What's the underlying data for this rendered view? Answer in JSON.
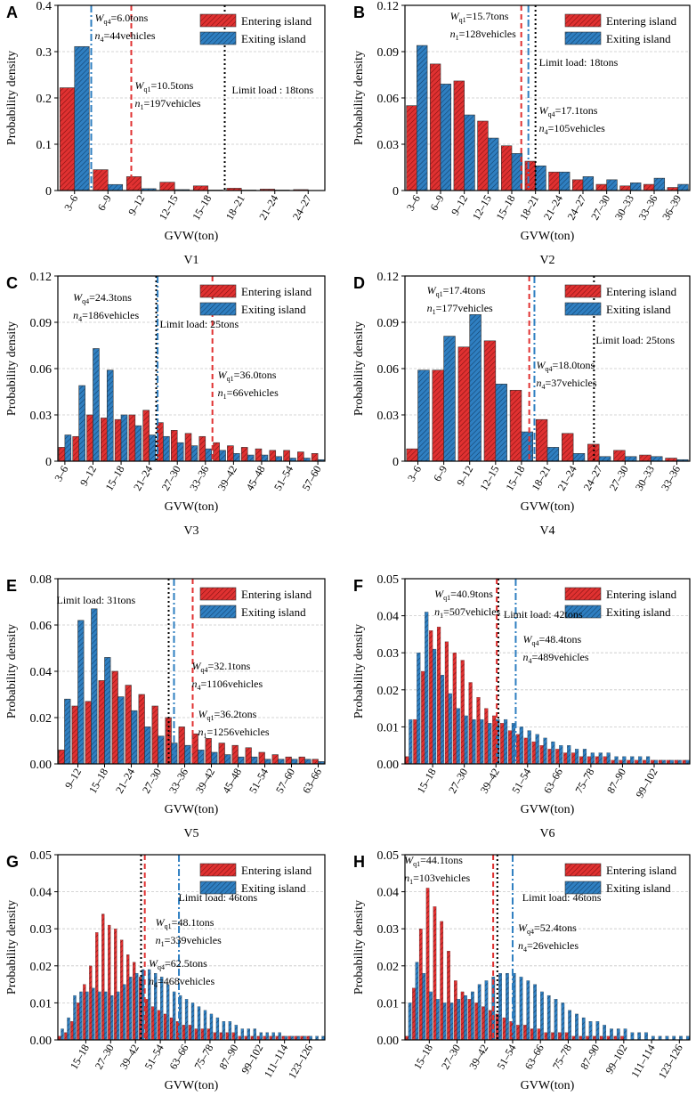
{
  "colors": {
    "entering": "#e03131",
    "exiting": "#2f7fc1",
    "limit": "#000000"
  },
  "chart_data": [
    {
      "type": "bar",
      "panel": "A",
      "caption": "V1",
      "xlabel": "GVW(ton)",
      "ylabel": "Probability density",
      "ylim": [
        0,
        0.4
      ],
      "yticks": [
        "0",
        "0.1",
        "0.2",
        "0.3",
        "0.4"
      ],
      "categories": [
        "3–6",
        "6–9",
        "9–12",
        "12–15",
        "15–18",
        "18–21",
        "21–24",
        "24–27"
      ],
      "series": [
        {
          "name": "Entering island",
          "values": [
            0.222,
            0.045,
            0.03,
            0.018,
            0.01,
            0.005,
            0.003,
            0.002
          ]
        },
        {
          "name": "Exiting island",
          "values": [
            0.311,
            0.013,
            0.004,
            0.002,
            0.001,
            0.001,
            0.001,
            0.0
          ]
        }
      ],
      "lines": [
        {
          "kind": "exiting",
          "x": 1.0,
          "w_label": "6.0tons",
          "n_label": "44vehicles",
          "w_sub": "q4",
          "n_sub": "4"
        },
        {
          "kind": "entering",
          "x": 2.2,
          "w_label": "10.5tons",
          "n_label": "197vehicles",
          "w_sub": "q1",
          "n_sub": "1"
        },
        {
          "kind": "limit",
          "x": 5.0,
          "label": "Limit load : 18tons"
        }
      ]
    },
    {
      "type": "bar",
      "panel": "B",
      "caption": "V2",
      "xlabel": "GVW(ton)",
      "ylabel": "Probability density",
      "ylim": [
        0,
        0.12
      ],
      "yticks": [
        "0",
        "0.03",
        "0.06",
        "0.09",
        "0.12"
      ],
      "categories": [
        "3–6",
        "6–9",
        "9–12",
        "12–15",
        "15–18",
        "18–21",
        "21–24",
        "24–27",
        "27–30",
        "30–33",
        "33–36",
        "36–39"
      ],
      "series": [
        {
          "name": "Entering island",
          "values": [
            0.055,
            0.082,
            0.071,
            0.045,
            0.029,
            0.019,
            0.012,
            0.007,
            0.004,
            0.003,
            0.004,
            0.002
          ]
        },
        {
          "name": "Exiting island",
          "values": [
            0.094,
            0.069,
            0.049,
            0.034,
            0.024,
            0.016,
            0.012,
            0.009,
            0.007,
            0.005,
            0.008,
            0.004
          ]
        }
      ],
      "lines": [
        {
          "kind": "entering",
          "x": 4.9,
          "w_label": "15.7tons",
          "n_label": "128vehicles",
          "w_sub": "q1",
          "n_sub": "1"
        },
        {
          "kind": "exiting",
          "x": 5.2,
          "w_label": "17.1tons",
          "n_label": "105vehicles",
          "w_sub": "q4",
          "n_sub": "4"
        },
        {
          "kind": "limit",
          "x": 5.5,
          "label": "Limit load: 18tons"
        }
      ]
    },
    {
      "type": "bar",
      "panel": "C",
      "caption": "V3",
      "xlabel": "GVW(ton)",
      "ylabel": "Probability density",
      "ylim": [
        0,
        0.12
      ],
      "yticks": [
        "0",
        "0.03",
        "0.06",
        "0.09",
        "0.12"
      ],
      "categories": [
        "3–6",
        "6–9",
        "9–12",
        "12–15",
        "15–18",
        "18–21",
        "21–24",
        "24–27",
        "27–30",
        "30–33",
        "33–36",
        "36–39",
        "39–42",
        "42–45",
        "45–48",
        "48–51",
        "51–54",
        "54–57",
        "57–60"
      ],
      "tick_labels": [
        "3–6",
        "9–12",
        "15–18",
        "21–24",
        "27–30",
        "33–36",
        "39–42",
        "45–48",
        "51–54",
        "57–60"
      ],
      "series": [
        {
          "name": "Entering island",
          "values": [
            0.009,
            0.016,
            0.03,
            0.028,
            0.027,
            0.03,
            0.033,
            0.025,
            0.02,
            0.018,
            0.016,
            0.012,
            0.01,
            0.009,
            0.008,
            0.007,
            0.007,
            0.006,
            0.005
          ]
        },
        {
          "name": "Exiting island",
          "values": [
            0.017,
            0.049,
            0.073,
            0.059,
            0.03,
            0.023,
            0.017,
            0.016,
            0.012,
            0.01,
            0.008,
            0.007,
            0.005,
            0.004,
            0.004,
            0.003,
            0.002,
            0.002,
            0.001
          ]
        }
      ],
      "lines": [
        {
          "kind": "limit",
          "x": 7.0,
          "label": "Limit load: 25tons"
        },
        {
          "kind": "exiting",
          "x": 7.1,
          "w_label": "24.3tons",
          "n_label": "186vehicles",
          "w_sub": "q4",
          "n_sub": "4"
        },
        {
          "kind": "entering",
          "x": 11.0,
          "w_label": "36.0tons",
          "n_label": "66vehicles",
          "w_sub": "q1",
          "n_sub": "1"
        }
      ]
    },
    {
      "type": "bar",
      "panel": "D",
      "caption": "V4",
      "xlabel": "GVW(ton)",
      "ylabel": "Probability density",
      "ylim": [
        0,
        0.12
      ],
      "yticks": [
        "0",
        "0.03",
        "0.06",
        "0.09",
        "0.12"
      ],
      "categories": [
        "3–6",
        "6–9",
        "9–12",
        "12–15",
        "15–18",
        "18–21",
        "21–24",
        "24–27",
        "27–30",
        "30–33",
        "33–36"
      ],
      "series": [
        {
          "name": "Entering island",
          "values": [
            0.008,
            0.059,
            0.074,
            0.078,
            0.046,
            0.027,
            0.018,
            0.011,
            0.007,
            0.004,
            0.002
          ]
        },
        {
          "name": "Exiting island",
          "values": [
            0.059,
            0.081,
            0.095,
            0.05,
            0.019,
            0.009,
            0.005,
            0.003,
            0.003,
            0.003,
            0.001
          ]
        }
      ],
      "lines": [
        {
          "kind": "entering",
          "x": 4.8,
          "w_label": "17.4tons",
          "n_label": "177vehicles",
          "w_sub": "q1",
          "n_sub": "1"
        },
        {
          "kind": "exiting",
          "x": 5.0,
          "w_label": "18.0tons",
          "n_label": "37vehicles",
          "w_sub": "q4",
          "n_sub": "4"
        },
        {
          "kind": "limit",
          "x": 7.3,
          "label": "Limit load: 25tons"
        }
      ]
    },
    {
      "type": "bar",
      "panel": "E",
      "caption": "V5",
      "xlabel": "GVW(ton)",
      "ylabel": "Probability density",
      "ylim": [
        0,
        0.08
      ],
      "yticks": [
        "0.00",
        "0.02",
        "0.04",
        "0.06",
        "0.08"
      ],
      "categories": [
        "6–9",
        "9–12",
        "12–15",
        "15–18",
        "18–21",
        "21–24",
        "24–27",
        "27–30",
        "30–33",
        "33–36",
        "36–39",
        "39–42",
        "42–45",
        "45–48",
        "48–51",
        "51–54",
        "54–57",
        "57–60",
        "60–63",
        "63–66"
      ],
      "tick_labels": [
        "9–12",
        "15–18",
        "21–24",
        "27–30",
        "33–36",
        "39–42",
        "45–48",
        "51–54",
        "57–60",
        "63–66"
      ],
      "series": [
        {
          "name": "Entering island",
          "values": [
            0.006,
            0.025,
            0.027,
            0.036,
            0.04,
            0.034,
            0.03,
            0.025,
            0.02,
            0.016,
            0.013,
            0.011,
            0.009,
            0.008,
            0.007,
            0.005,
            0.004,
            0.003,
            0.003,
            0.002
          ]
        },
        {
          "name": "Exiting island",
          "values": [
            0.028,
            0.062,
            0.067,
            0.046,
            0.029,
            0.023,
            0.016,
            0.012,
            0.009,
            0.008,
            0.006,
            0.005,
            0.004,
            0.003,
            0.003,
            0.002,
            0.002,
            0.002,
            0.002,
            0.001
          ]
        }
      ],
      "lines": [
        {
          "kind": "limit",
          "x": 8.3,
          "label": "Limit load: 31tons"
        },
        {
          "kind": "exiting",
          "x": 8.7,
          "w_label": "32.1tons",
          "n_label": "1106vehicles",
          "w_sub": "q4",
          "n_sub": "4"
        },
        {
          "kind": "entering",
          "x": 10.1,
          "w_label": "36.2tons",
          "n_label": "1256vehicles",
          "w_sub": "q1",
          "n_sub": "1"
        }
      ]
    },
    {
      "type": "bar",
      "panel": "F",
      "caption": "V6",
      "xlabel": "GVW(ton)",
      "ylabel": "Probability density",
      "ylim": [
        0,
        0.05
      ],
      "yticks": [
        "0.00",
        "0.01",
        "0.02",
        "0.03",
        "0.04",
        "0.05"
      ],
      "categories_range": {
        "start": 6,
        "step": 3,
        "count": 36
      },
      "tick_labels": [
        "15–18",
        "27–30",
        "39–42",
        "51–54",
        "63–66",
        "75–78",
        "87–90",
        "99–102"
      ],
      "tick_start_index": 3,
      "tick_every": 4,
      "series": [
        {
          "name": "Entering island",
          "values": [
            0.002,
            0.012,
            0.025,
            0.036,
            0.037,
            0.033,
            0.03,
            0.028,
            0.022,
            0.018,
            0.015,
            0.013,
            0.011,
            0.009,
            0.008,
            0.007,
            0.006,
            0.005,
            0.004,
            0.004,
            0.003,
            0.003,
            0.002,
            0.002,
            0.002,
            0.002,
            0.001,
            0.001,
            0.001,
            0.001,
            0.001,
            0.001,
            0.001,
            0.001,
            0.001,
            0.001
          ]
        },
        {
          "name": "Exiting island",
          "values": [
            0.012,
            0.03,
            0.041,
            0.031,
            0.024,
            0.019,
            0.015,
            0.013,
            0.012,
            0.012,
            0.011,
            0.012,
            0.012,
            0.011,
            0.01,
            0.009,
            0.008,
            0.007,
            0.006,
            0.005,
            0.005,
            0.004,
            0.004,
            0.003,
            0.003,
            0.003,
            0.002,
            0.002,
            0.002,
            0.002,
            0.002,
            0.001,
            0.001,
            0.001,
            0.001,
            0.001
          ]
        }
      ],
      "lines": [
        {
          "kind": "limit",
          "x": 11.8,
          "label": "Limit load: 42tons"
        },
        {
          "kind": "entering",
          "x": 11.6,
          "w_label": "40.9tons",
          "n_label": "507vehicles",
          "w_sub": "q1",
          "n_sub": "1"
        },
        {
          "kind": "exiting",
          "x": 14.0,
          "w_label": "48.4tons",
          "n_label": "489vehicles",
          "w_sub": "q4",
          "n_sub": "4"
        }
      ]
    },
    {
      "type": "bar",
      "panel": "G",
      "caption": "V7",
      "xlabel": "GVW(ton)",
      "ylabel": "Probability density",
      "ylim": [
        0,
        0.05
      ],
      "yticks": [
        "0.00",
        "0.01",
        "0.02",
        "0.03",
        "0.04",
        "0.05"
      ],
      "categories_range": {
        "start": 3,
        "step": 3,
        "count": 43
      },
      "tick_labels": [
        "15–18",
        "27–30",
        "39–42",
        "51–54",
        "63–66",
        "75–78",
        "87–90",
        "99–102",
        "111–114",
        "123–126"
      ],
      "tick_start_index": 4,
      "tick_every": 4,
      "series": [
        {
          "name": "Entering island",
          "values": [
            0.001,
            0.002,
            0.005,
            0.01,
            0.015,
            0.02,
            0.029,
            0.034,
            0.031,
            0.03,
            0.027,
            0.023,
            0.021,
            0.017,
            0.011,
            0.009,
            0.008,
            0.007,
            0.006,
            0.005,
            0.004,
            0.004,
            0.003,
            0.003,
            0.003,
            0.002,
            0.002,
            0.002,
            0.002,
            0.001,
            0.001,
            0.001,
            0.001,
            0.001,
            0.001,
            0.001,
            0.001,
            0.001,
            0.001,
            0.001,
            0.001,
            0.0,
            0.0
          ]
        },
        {
          "name": "Exiting island",
          "values": [
            0.003,
            0.006,
            0.012,
            0.013,
            0.013,
            0.014,
            0.013,
            0.013,
            0.012,
            0.013,
            0.015,
            0.017,
            0.018,
            0.019,
            0.019,
            0.018,
            0.017,
            0.015,
            0.013,
            0.012,
            0.011,
            0.01,
            0.009,
            0.008,
            0.007,
            0.006,
            0.005,
            0.005,
            0.004,
            0.003,
            0.003,
            0.003,
            0.002,
            0.002,
            0.002,
            0.002,
            0.001,
            0.001,
            0.001,
            0.001,
            0.001,
            0.001,
            0.001
          ]
        }
      ],
      "lines": [
        {
          "kind": "limit",
          "x": 13.4,
          "label": "Limit load: 46tons"
        },
        {
          "kind": "entering",
          "x": 14.0,
          "w_label": "48.1tons",
          "n_label": "339vehicles",
          "w_sub": "q1",
          "n_sub": "1"
        },
        {
          "kind": "exiting",
          "x": 19.5,
          "w_label": "62.5tons",
          "n_label": "468vehicles",
          "w_sub": "q4",
          "n_sub": "4"
        }
      ]
    },
    {
      "type": "bar",
      "panel": "H",
      "caption": "V8",
      "xlabel": "GVW(ton)",
      "ylabel": "Probability density",
      "ylim": [
        0,
        0.05
      ],
      "yticks": [
        "0.00",
        "0.01",
        "0.02",
        "0.03",
        "0.04",
        "0.05"
      ],
      "categories_range": {
        "start": 6,
        "step": 3,
        "count": 41
      },
      "tick_labels": [
        "15–18",
        "27–30",
        "39–42",
        "51–54",
        "63–66",
        "75–78",
        "87–90",
        "99–102",
        "111–114",
        "123–126"
      ],
      "tick_start_index": 3,
      "tick_every": 4,
      "series": [
        {
          "name": "Entering island",
          "values": [
            0.001,
            0.014,
            0.03,
            0.041,
            0.036,
            0.032,
            0.024,
            0.016,
            0.013,
            0.011,
            0.01,
            0.009,
            0.008,
            0.007,
            0.006,
            0.005,
            0.004,
            0.004,
            0.003,
            0.003,
            0.002,
            0.002,
            0.002,
            0.002,
            0.001,
            0.001,
            0.001,
            0.001,
            0.001,
            0.001,
            0.001,
            0.001,
            0.0,
            0.0,
            0.0,
            0.0,
            0.0,
            0.0,
            0.0,
            0.0,
            0.0
          ]
        },
        {
          "name": "Exiting island",
          "values": [
            0.01,
            0.021,
            0.018,
            0.013,
            0.011,
            0.01,
            0.01,
            0.011,
            0.012,
            0.013,
            0.015,
            0.016,
            0.017,
            0.018,
            0.018,
            0.018,
            0.017,
            0.016,
            0.015,
            0.013,
            0.012,
            0.011,
            0.01,
            0.008,
            0.007,
            0.006,
            0.005,
            0.005,
            0.004,
            0.003,
            0.003,
            0.003,
            0.002,
            0.002,
            0.002,
            0.001,
            0.001,
            0.001,
            0.001,
            0.001,
            0.001
          ]
        }
      ],
      "lines": [
        {
          "kind": "entering",
          "x": 12.7,
          "w_label": "44.1tons",
          "n_label": "103vehicles",
          "w_sub": "q1",
          "n_sub": "1"
        },
        {
          "kind": "limit",
          "x": 13.3,
          "label": "Limit load: 46tons"
        },
        {
          "kind": "exiting",
          "x": 15.5,
          "w_label": "52.4tons",
          "n_label": "26vehicles",
          "w_sub": "q4",
          "n_sub": "4"
        }
      ]
    }
  ]
}
